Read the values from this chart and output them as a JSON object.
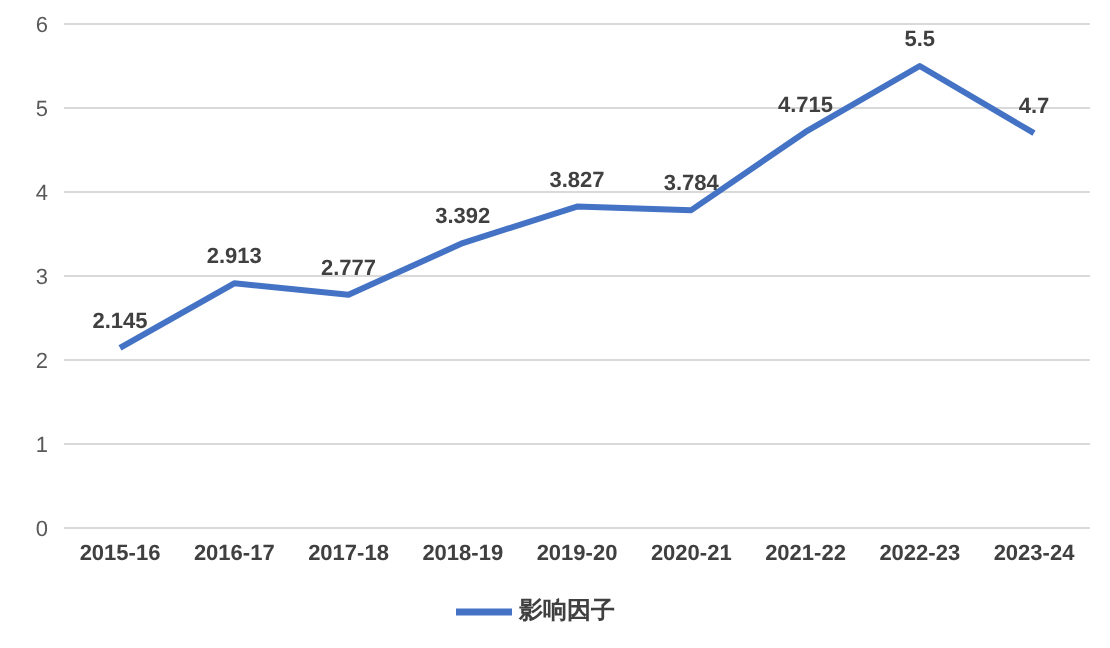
{
  "chart_data": {
    "type": "line",
    "categories": [
      "2015-16",
      "2016-17",
      "2017-18",
      "2018-19",
      "2019-20",
      "2020-21",
      "2021-22",
      "2022-23",
      "2023-24"
    ],
    "series": [
      {
        "name": "影响因子",
        "color": "#4472c4",
        "values": [
          2.145,
          2.913,
          2.777,
          3.392,
          3.827,
          3.784,
          4.715,
          5.5,
          4.7
        ]
      }
    ],
    "ylim": [
      0,
      6
    ],
    "yticks": [
      0,
      1,
      2,
      3,
      4,
      5,
      6
    ],
    "grid": "y",
    "legend": "bottom",
    "marker": "none",
    "line_style": "solid",
    "data_labels": true
  }
}
